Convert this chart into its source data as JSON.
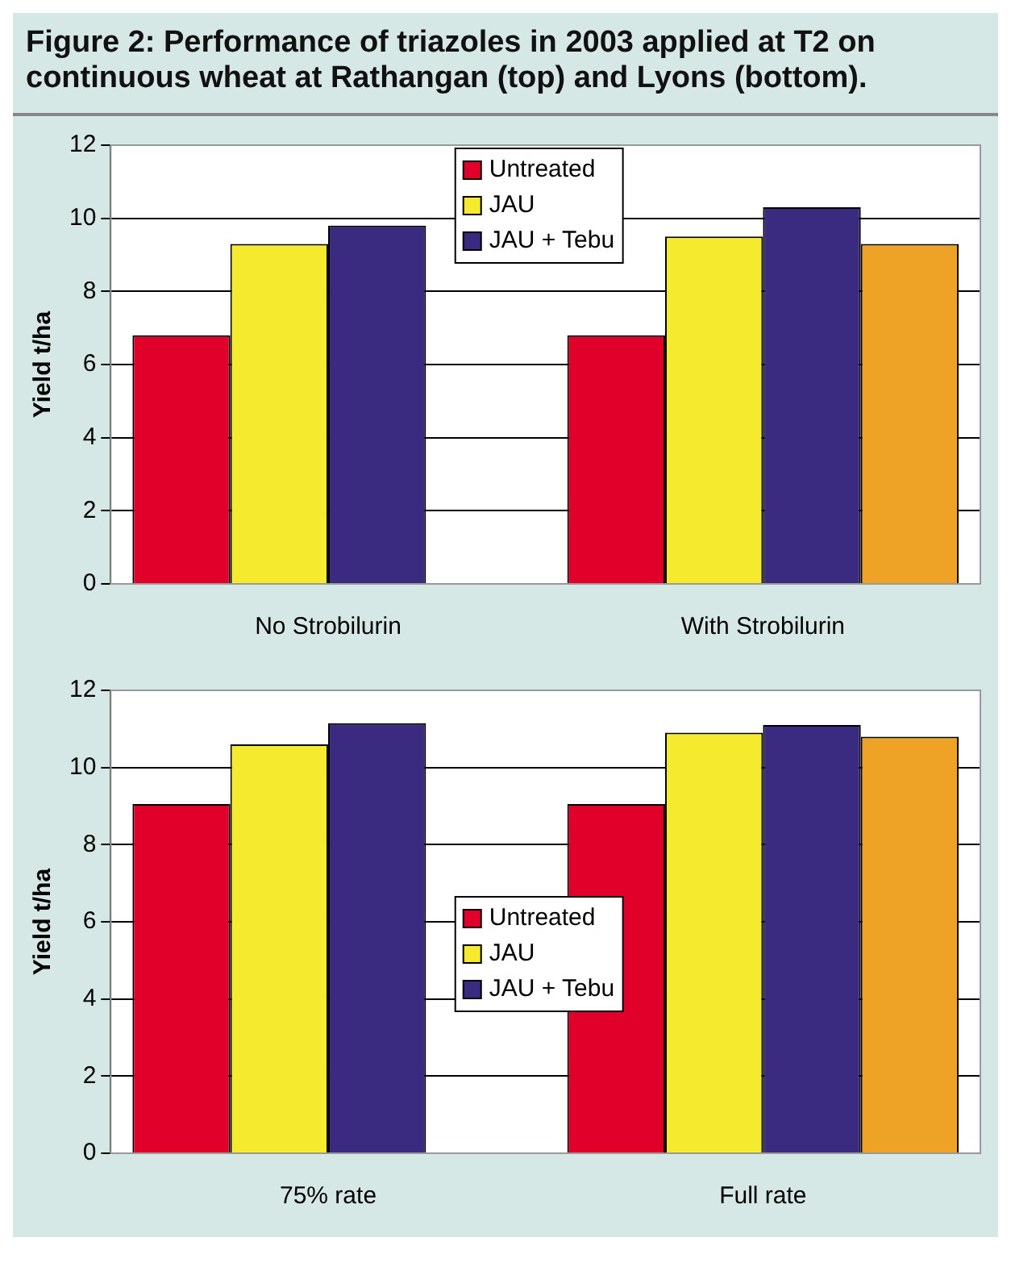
{
  "chart_data": [
    {
      "type": "bar",
      "title": "Figure 2: Performance of triazoles in 2003 applied at T2 on continuous wheat at Rathangan (top) and Lyons (bottom).",
      "categories": [
        "No Strobilurin",
        "With Strobilurin"
      ],
      "ylabel": "Yield t/ha",
      "ylim": [
        0,
        12
      ],
      "yticks": [
        0,
        2,
        4,
        6,
        8,
        10,
        12
      ],
      "grid": "y",
      "legend": "top",
      "series": [
        {
          "name": "Untreated",
          "color": "#e0002a",
          "values": [
            6.8,
            6.8
          ]
        },
        {
          "name": "JAU",
          "color": "#f5ea2e",
          "values": [
            9.3,
            9.5
          ]
        },
        {
          "name": "JAU + Tebu",
          "color": "#3a2a80",
          "values": [
            9.8,
            10.3
          ]
        },
        {
          "color": "#eea226",
          "values": [
            null,
            9.3
          ]
        }
      ]
    },
    {
      "type": "bar",
      "categories": [
        "75% rate",
        "Full rate"
      ],
      "ylabel": "Yield t/ha",
      "ylim": [
        0,
        12
      ],
      "yticks": [
        0,
        2,
        4,
        6,
        8,
        10,
        12
      ],
      "grid": "y",
      "legend": "center",
      "series": [
        {
          "name": "Untreated",
          "color": "#e0002a",
          "values": [
            9.05,
            9.05
          ]
        },
        {
          "name": "JAU",
          "color": "#f5ea2e",
          "values": [
            10.6,
            10.9
          ]
        },
        {
          "name": "JAU + Tebu",
          "color": "#3a2a80",
          "values": [
            11.15,
            11.1
          ]
        },
        {
          "color": "#eea226",
          "values": [
            null,
            10.8
          ]
        }
      ]
    }
  ]
}
